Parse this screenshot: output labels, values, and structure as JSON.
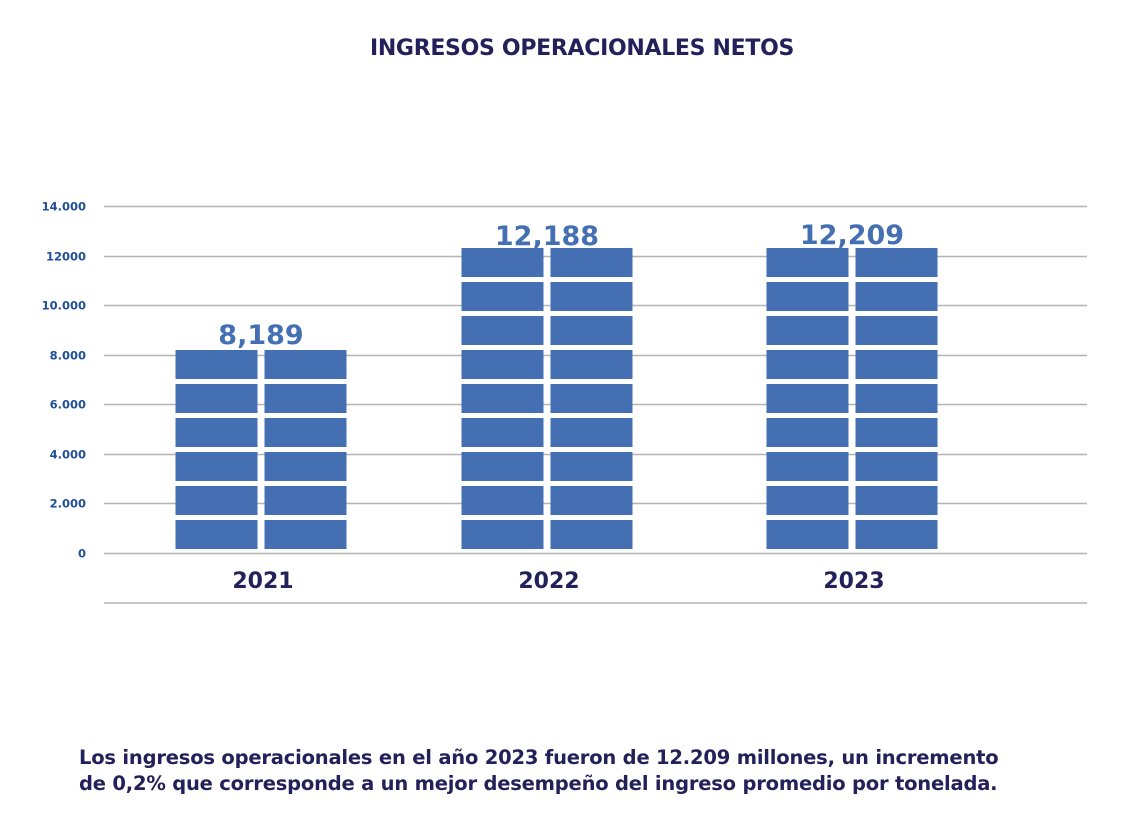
{
  "chart_data": {
    "type": "bar",
    "title": "INGRESOS OPERACIONALES NETOS",
    "categories": [
      "2021",
      "2022",
      "2023"
    ],
    "values": [
      8189,
      12188,
      12209
    ],
    "data_labels": [
      "8,189",
      "12,188",
      "12,209"
    ],
    "yticks": [
      0,
      2000,
      4000,
      6000,
      8000,
      10000,
      12000,
      14000
    ],
    "ytick_labels": [
      "0",
      "2.000",
      "4.000",
      "6.000",
      "8.000",
      "10.000",
      "12000",
      "14.000"
    ],
    "ylim": [
      0,
      14000
    ],
    "xlabel": "",
    "ylabel": "",
    "grid": true,
    "legend": "none",
    "style": "stacked-blocks",
    "bar_color": "#4470b3"
  },
  "note": {
    "line1": "Los ingresos operacionales en el año 2023 fueron de 12.209 millones, un incremento",
    "line2": "de 0,2% que corresponde a un mejor desempeño del ingreso promedio por tonelada."
  }
}
